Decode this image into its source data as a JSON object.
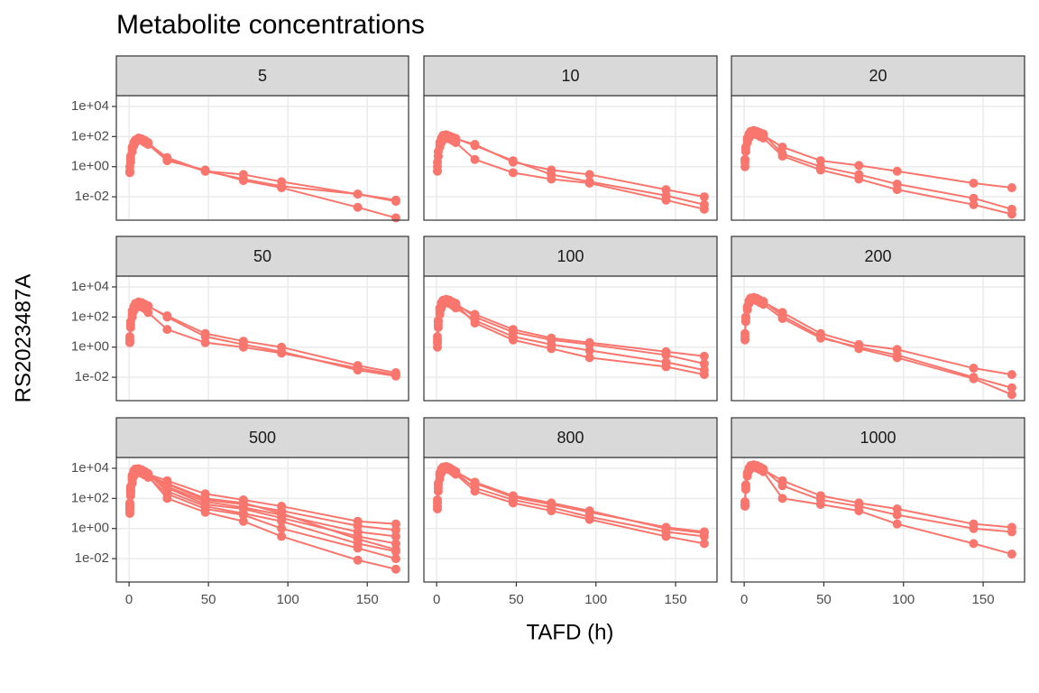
{
  "chart_data": {
    "type": "line",
    "title": "Metabolite concentrations",
    "xlabel": "TAFD (h)",
    "ylabel": "RS2023487A",
    "log_y": true,
    "grid": true,
    "color": "#F8766D",
    "x": [
      0.5,
      1,
      2,
      3,
      4,
      6,
      8,
      10,
      12,
      24,
      48,
      72,
      96,
      144,
      168
    ],
    "xlim": [
      -8,
      176
    ],
    "xticks": [
      0,
      50,
      100,
      150
    ],
    "ylim": [
      0.00028,
      52000
    ],
    "yticks": [
      {
        "value": 0.01,
        "label": "1e-02"
      },
      {
        "value": 1,
        "label": "1e+00"
      },
      {
        "value": 100,
        "label": "1e+02"
      },
      {
        "value": 10000,
        "label": "1e+04"
      }
    ],
    "panels": [
      {
        "label": "5",
        "series": [
          {
            "values": [
              0.5,
              3,
              15,
              35,
              50,
              70,
              60,
              45,
              35,
              4,
              0.5,
              0.15,
              0.05,
              0.015,
              0.006
            ]
          },
          {
            "values": [
              1,
              5,
              20,
              40,
              60,
              80,
              70,
              55,
              40,
              3,
              0.5,
              0.3,
              0.1,
              0.015,
              0.005
            ]
          },
          {
            "values": [
              0.4,
              2,
              10,
              25,
              40,
              60,
              55,
              40,
              30,
              2.5,
              0.6,
              0.12,
              0.04,
              0.002,
              0.0004
            ]
          }
        ]
      },
      {
        "label": "10",
        "series": [
          {
            "values": [
              0.5,
              5,
              30,
              60,
              90,
              110,
              100,
              80,
              70,
              30,
              2,
              0.6,
              0.3,
              0.03,
              0.01
            ]
          },
          {
            "values": [
              2,
              10,
              40,
              80,
              120,
              130,
              110,
              90,
              75,
              25,
              2.5,
              0.3,
              0.1,
              0.012,
              0.003
            ]
          },
          {
            "values": [
              1,
              5,
              20,
              40,
              60,
              80,
              70,
              55,
              40,
              3,
              0.4,
              0.15,
              0.08,
              0.006,
              0.0015
            ]
          }
        ]
      },
      {
        "label": "20",
        "series": [
          {
            "values": [
              2,
              15,
              60,
              120,
              180,
              200,
              180,
              150,
              120,
              20,
              2.5,
              1.2,
              0.5,
              0.08,
              0.04
            ]
          },
          {
            "values": [
              3,
              20,
              80,
              150,
              220,
              250,
              220,
              180,
              150,
              7,
              1,
              0.3,
              0.07,
              0.008,
              0.0015
            ]
          },
          {
            "values": [
              1,
              10,
              40,
              80,
              120,
              150,
              130,
              100,
              80,
              5,
              0.6,
              0.15,
              0.03,
              0.003,
              0.0007
            ]
          }
        ]
      },
      {
        "label": "50",
        "series": [
          {
            "values": [
              3,
              30,
              150,
              400,
              700,
              900,
              800,
              600,
              500,
              120,
              8,
              2.5,
              1,
              0.06,
              0.02
            ]
          },
          {
            "values": [
              5,
              50,
              250,
              500,
              800,
              1000,
              900,
              700,
              550,
              100,
              5,
              1.5,
              0.5,
              0.03,
              0.012
            ]
          },
          {
            "values": [
              2,
              20,
              100,
              250,
              400,
              500,
              450,
              350,
              200,
              15,
              2,
              1,
              0.4,
              0.04,
              0.015
            ]
          }
        ]
      },
      {
        "label": "100",
        "series": [
          {
            "values": [
              2,
              30,
              200,
              600,
              1000,
              1200,
              1000,
              800,
              600,
              150,
              15,
              4,
              2,
              0.5,
              0.25
            ]
          },
          {
            "values": [
              3,
              50,
              300,
              800,
              1200,
              1500,
              1300,
              1000,
              800,
              100,
              10,
              3,
              1.5,
              0.3,
              0.08
            ]
          },
          {
            "values": [
              1,
              20,
              150,
              400,
              700,
              900,
              800,
              600,
              400,
              60,
              5,
              1.5,
              0.6,
              0.1,
              0.03
            ]
          },
          {
            "values": [
              5,
              60,
              400,
              900,
              1300,
              1400,
              1200,
              900,
              700,
              40,
              3,
              0.8,
              0.2,
              0.05,
              0.015
            ]
          }
        ]
      },
      {
        "label": "200",
        "series": [
          {
            "values": [
              5,
              80,
              400,
              1000,
              1500,
              1800,
              1500,
              1200,
              1000,
              200,
              8,
              1.5,
              0.7,
              0.04,
              0.015
            ]
          },
          {
            "values": [
              8,
              100,
              500,
              1200,
              1800,
              2000,
              1700,
              1300,
              1100,
              120,
              5,
              0.8,
              0.2,
              0.008,
              0.0007
            ]
          },
          {
            "values": [
              3,
              50,
              300,
              800,
              1200,
              1400,
              1200,
              900,
              700,
              80,
              4,
              1,
              0.3,
              0.01,
              0.002
            ]
          }
        ]
      },
      {
        "label": "500",
        "series": [
          {
            "values": [
              20,
              300,
              2000,
              5000,
              7000,
              8000,
              7000,
              5000,
              4000,
              1500,
              200,
              80,
              30,
              3,
              2
            ]
          },
          {
            "values": [
              30,
              400,
              2500,
              5000,
              6500,
              7000,
              6000,
              4500,
              3500,
              900,
              80,
              40,
              15,
              1.5,
              0.8
            ]
          },
          {
            "values": [
              15,
              200,
              1500,
              3500,
              5000,
              6000,
              5000,
              4000,
              3000,
              500,
              40,
              20,
              5,
              0.3,
              0.1
            ]
          },
          {
            "values": [
              40,
              500,
              3000,
              6000,
              7500,
              8500,
              7000,
              5500,
              4000,
              300,
              30,
              10,
              3,
              0.1,
              0.03
            ]
          },
          {
            "values": [
              10,
              150,
              1000,
              3000,
              4500,
              5500,
              4500,
              3500,
              2500,
              200,
              20,
              8,
              1,
              0.05,
              0.01
            ]
          },
          {
            "values": [
              25,
              300,
              2000,
              4500,
              6000,
              6500,
              5500,
              4000,
              3000,
              100,
              12,
              3,
              0.3,
              0.008,
              0.002
            ]
          },
          {
            "values": [
              50,
              600,
              3500,
              7000,
              9000,
              9500,
              8000,
              6000,
              4500,
              600,
              60,
              25,
              8,
              0.6,
              0.3
            ]
          },
          {
            "values": [
              20,
              250,
              1800,
              4000,
              5500,
              6000,
              5200,
              4200,
              3200,
              1000,
              100,
              50,
              10,
              0.2,
              0.04
            ]
          }
        ]
      },
      {
        "label": "800",
        "series": [
          {
            "values": [
              30,
              500,
              3000,
              7000,
              10000,
              12000,
              10000,
              8000,
              6000,
              1000,
              120,
              40,
              12,
              1.2,
              0.6
            ]
          },
          {
            "values": [
              50,
              800,
              4000,
              8000,
              11000,
              12000,
              10000,
              7000,
              5000,
              500,
              80,
              25,
              6,
              0.6,
              0.3
            ]
          },
          {
            "values": [
              20,
              300,
              2000,
              5000,
              8000,
              9000,
              8000,
              6000,
              4000,
              300,
              50,
              15,
              4,
              0.3,
              0.1
            ]
          },
          {
            "values": [
              80,
              1000,
              5000,
              9000,
              12000,
              13000,
              11000,
              8000,
              6000,
              1200,
              150,
              50,
              15,
              1,
              0.5
            ]
          }
        ]
      },
      {
        "label": "1000",
        "series": [
          {
            "values": [
              40,
              600,
              4000,
              9000,
              14000,
              16000,
              14000,
              10000,
              8000,
              1500,
              150,
              50,
              20,
              2,
              1.2
            ]
          },
          {
            "values": [
              60,
              800,
              5000,
              10000,
              15000,
              17000,
              15000,
              12000,
              9000,
              700,
              80,
              30,
              8,
              1,
              0.6
            ]
          },
          {
            "values": [
              30,
              400,
              3000,
              7000,
              10000,
              12000,
              10000,
              8000,
              6000,
              100,
              40,
              15,
              2,
              0.1,
              0.02
            ]
          }
        ]
      }
    ]
  }
}
